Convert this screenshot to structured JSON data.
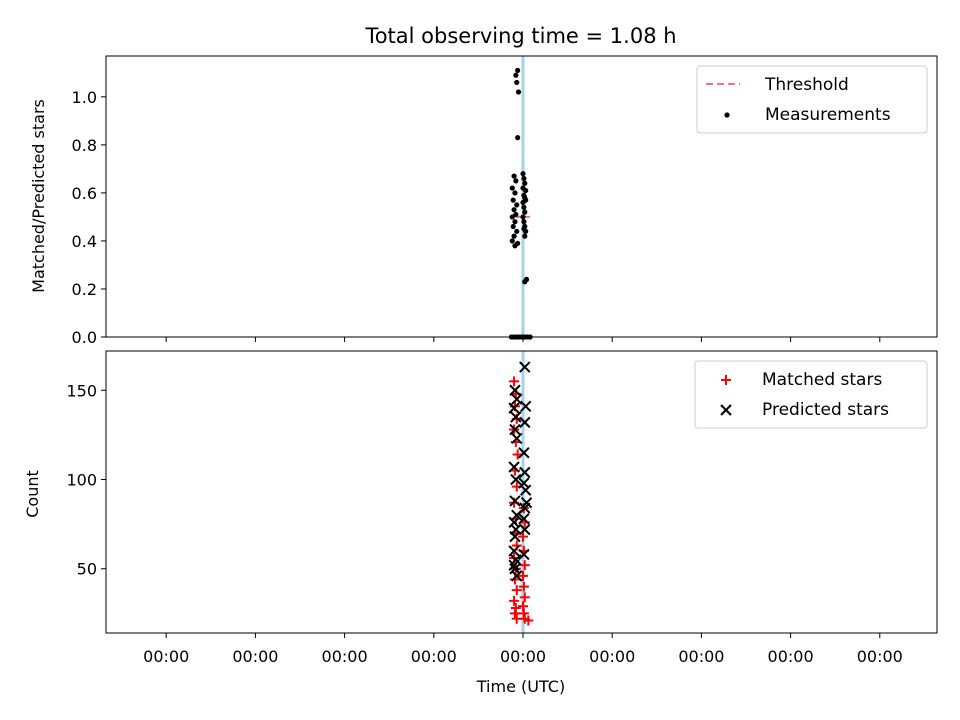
{
  "figure": {
    "title": "Total observing time = 1.08 h",
    "xlabel": "Time (UTC)",
    "x_tick_labels": [
      "00:00",
      "00:00",
      "00:00",
      "00:00",
      "00:00",
      "00:00",
      "00:00",
      "00:00",
      "00:00"
    ]
  },
  "colors": {
    "threshold": "#ff6f6f",
    "measurement": "#000000",
    "matched": "#ff0000",
    "predicted": "#000000",
    "marker_line": "#a6d3e8"
  },
  "chart_data": [
    {
      "type": "scatter",
      "ylabel": "Matched/Predicted stars",
      "ylim": [
        0,
        1.17
      ],
      "y_ticks": [
        0.0,
        0.2,
        0.4,
        0.6,
        0.8,
        1.0
      ],
      "y_tick_labels": [
        "0.0",
        "0.2",
        "0.4",
        "0.6",
        "0.8",
        "1.0"
      ],
      "legend_position": "top-right",
      "vline_x": 0.0,
      "series": [
        {
          "name": "Threshold",
          "kind": "dashed-line",
          "x": [
            -0.08,
            0.08
          ],
          "y": [
            0.5,
            0.5
          ]
        },
        {
          "name": "Measurements",
          "kind": "dot",
          "points": [
            [
              -0.08,
              1.09
            ],
            [
              -0.06,
              1.11
            ],
            [
              -0.07,
              1.06
            ],
            [
              -0.05,
              1.02
            ],
            [
              -0.06,
              0.83
            ],
            [
              -0.1,
              0.67
            ],
            [
              -0.08,
              0.65
            ],
            [
              -0.12,
              0.62
            ],
            [
              -0.09,
              0.6
            ],
            [
              -0.11,
              0.57
            ],
            [
              -0.07,
              0.55
            ],
            [
              -0.1,
              0.53
            ],
            [
              -0.08,
              0.51
            ],
            [
              -0.12,
              0.5
            ],
            [
              -0.09,
              0.48
            ],
            [
              -0.11,
              0.46
            ],
            [
              -0.07,
              0.44
            ],
            [
              -0.1,
              0.42
            ],
            [
              -0.12,
              0.4
            ],
            [
              -0.09,
              0.38
            ],
            [
              -0.06,
              0.39
            ],
            [
              0.0,
              0.68
            ],
            [
              0.01,
              0.66
            ],
            [
              0.02,
              0.64
            ],
            [
              0.0,
              0.62
            ],
            [
              0.03,
              0.61
            ],
            [
              0.01,
              0.59
            ],
            [
              0.02,
              0.58
            ],
            [
              0.0,
              0.56
            ],
            [
              0.01,
              0.54
            ],
            [
              0.03,
              0.57
            ],
            [
              0.02,
              0.52
            ],
            [
              0.0,
              0.5
            ],
            [
              0.01,
              0.48
            ],
            [
              0.02,
              0.46
            ],
            [
              0.03,
              0.44
            ],
            [
              0.01,
              0.45
            ],
            [
              0.02,
              0.42
            ],
            [
              0.04,
              0.24
            ],
            [
              0.02,
              0.23
            ],
            [
              -0.13,
              0.0
            ],
            [
              -0.1,
              0.0
            ],
            [
              -0.07,
              0.0
            ],
            [
              -0.04,
              0.0
            ],
            [
              -0.01,
              0.0
            ],
            [
              0.02,
              0.0
            ],
            [
              0.05,
              0.0
            ],
            [
              0.08,
              0.0
            ]
          ]
        }
      ]
    },
    {
      "type": "scatter",
      "ylabel": "Count",
      "ylim": [
        14,
        172
      ],
      "y_ticks": [
        50,
        100,
        150
      ],
      "y_tick_labels": [
        "50",
        "100",
        "150"
      ],
      "legend_position": "top-right",
      "vline_x": 0.0,
      "series": [
        {
          "name": "Matched stars",
          "kind": "plus",
          "points": [
            [
              -0.1,
              155
            ],
            [
              -0.08,
              148
            ],
            [
              -0.09,
              141
            ],
            [
              -0.07,
              134
            ],
            [
              -0.1,
              128
            ],
            [
              -0.08,
              121
            ],
            [
              -0.06,
              114
            ],
            [
              -0.09,
              105
            ],
            [
              -0.07,
              96
            ],
            [
              -0.1,
              87
            ],
            [
              -0.08,
              78
            ],
            [
              -0.09,
              70
            ],
            [
              -0.07,
              63
            ],
            [
              -0.1,
              56
            ],
            [
              -0.08,
              50
            ],
            [
              -0.09,
              44
            ],
            [
              -0.07,
              38
            ],
            [
              -0.1,
              32
            ],
            [
              -0.08,
              28
            ],
            [
              -0.09,
              25
            ],
            [
              -0.07,
              22
            ],
            [
              0.01,
              84
            ],
            [
              0.02,
              76
            ],
            [
              0.0,
              68
            ],
            [
              0.01,
              60
            ],
            [
              0.02,
              52
            ],
            [
              0.0,
              46
            ],
            [
              0.01,
              40
            ],
            [
              0.02,
              34
            ],
            [
              0.0,
              29
            ],
            [
              0.01,
              25
            ],
            [
              0.02,
              22
            ],
            [
              0.06,
              21
            ]
          ]
        },
        {
          "name": "Predicted stars",
          "kind": "x",
          "points": [
            [
              0.02,
              163
            ],
            [
              -0.09,
              150
            ],
            [
              -0.07,
              145
            ],
            [
              -0.1,
              140
            ],
            [
              -0.08,
              135
            ],
            [
              0.03,
              141
            ],
            [
              0.02,
              132
            ],
            [
              -0.09,
              128
            ],
            [
              -0.07,
              123
            ],
            [
              0.01,
              115
            ],
            [
              -0.1,
              107
            ],
            [
              -0.08,
              100
            ],
            [
              0.02,
              104
            ],
            [
              0.01,
              98
            ],
            [
              0.03,
              94
            ],
            [
              -0.09,
              88
            ],
            [
              0.04,
              87
            ],
            [
              0.02,
              84
            ],
            [
              -0.07,
              80
            ],
            [
              -0.1,
              76
            ],
            [
              0.01,
              78
            ],
            [
              -0.08,
              72
            ],
            [
              -0.09,
              68
            ],
            [
              0.02,
              72
            ],
            [
              -0.1,
              60
            ],
            [
              -0.08,
              55
            ],
            [
              -0.09,
              50
            ],
            [
              -0.07,
              46
            ],
            [
              0.01,
              58
            ],
            [
              -0.1,
              52
            ]
          ]
        }
      ]
    }
  ],
  "legends": {
    "top": [
      {
        "label": "Threshold",
        "kind": "dashed-line"
      },
      {
        "label": "Measurements",
        "kind": "dot"
      }
    ],
    "bottom": [
      {
        "label": "Matched stars",
        "kind": "plus"
      },
      {
        "label": "Predicted stars",
        "kind": "x"
      }
    ]
  }
}
